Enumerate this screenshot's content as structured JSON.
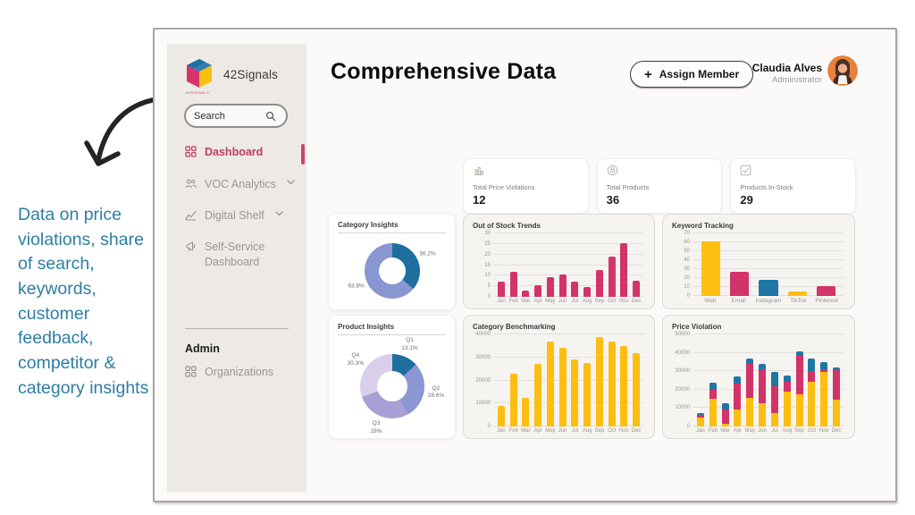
{
  "annotation": {
    "text": "Data on price violations, share of search, keywords, customer feedback, competitor & category insights"
  },
  "sidebar": {
    "brand": "42Signals",
    "brand_tag": "42SIGNALS",
    "search_placeholder": "Search",
    "items": [
      {
        "label": "Dashboard"
      },
      {
        "label": "VOC Analytics"
      },
      {
        "label": "Digital Shelf"
      },
      {
        "label": "Self-Service Dashboard"
      }
    ],
    "admin_heading": "Admin",
    "admin_items": [
      {
        "label": "Organizations"
      }
    ]
  },
  "header": {
    "title": "Comprehensive Data",
    "assign_icon": "+",
    "assign_label": "Assign Member",
    "user_name": "Claudia Alves",
    "user_role": "Administrator"
  },
  "stats": [
    {
      "label": "Total Price Violations",
      "value": "12",
      "icon": "bar-chart-icon"
    },
    {
      "label": "Total Products",
      "value": "36",
      "icon": "circle-lock-icon"
    },
    {
      "label": "Products In-Stock",
      "value": "29",
      "icon": "check-square-icon"
    }
  ],
  "chart_data": [
    {
      "type": "pie",
      "title": "Category Insights",
      "labels": [
        "36.2%",
        "63.8%"
      ],
      "values": [
        36.2,
        63.8
      ],
      "colors": [
        "#1f6f9e",
        "#8897d2"
      ],
      "donut": true
    },
    {
      "type": "bar",
      "title": "Out of Stock Trends",
      "categories": [
        "Jan",
        "Feb",
        "Mar",
        "Apr",
        "May",
        "Jun",
        "Jul",
        "Aug",
        "Sep",
        "Oct",
        "Nov",
        "Dec"
      ],
      "values": [
        7,
        12,
        3,
        5.5,
        9.5,
        10.5,
        7,
        4.5,
        12.5,
        19,
        25.5,
        7.5
      ],
      "color": "#d23368",
      "ylim": [
        0,
        30
      ],
      "yticks": [
        0,
        5,
        10,
        15,
        20,
        25,
        30
      ],
      "grid": true
    },
    {
      "type": "bar",
      "title": "Keyword Tracking",
      "categories": [
        "Web",
        "Email",
        "Instagram",
        "TikTok",
        "Pinterest"
      ],
      "values": [
        61,
        27,
        18,
        5,
        11
      ],
      "colors": [
        "#fcbe11",
        "#d23368",
        "#1f76a4",
        "#fcbe11",
        "#d23368"
      ],
      "ylim": [
        0,
        70
      ],
      "yticks": [
        0,
        10,
        20,
        30,
        40,
        50,
        60,
        70
      ],
      "grid": true
    },
    {
      "type": "pie",
      "title": "Product Insights",
      "labels": [
        "Q1\n13.1%",
        "Q2\n28.6%",
        "Q3\n28%",
        "Q4\n30.3%"
      ],
      "values": [
        13.1,
        28.6,
        28,
        30.3
      ],
      "colors": [
        "#1f6f9e",
        "#8b96d2",
        "#a99fd6",
        "#d9cfea"
      ],
      "donut": true
    },
    {
      "type": "bar",
      "title": "Category Benchmarking",
      "categories": [
        "Jan",
        "Feb",
        "Mar",
        "Apr",
        "May",
        "Jun",
        "Jul",
        "Aug",
        "Sep",
        "Oct",
        "Nov",
        "Dec"
      ],
      "values": [
        9000,
        23000,
        12500,
        27000,
        37000,
        34000,
        29000,
        27500,
        39000,
        37000,
        35000,
        32000
      ],
      "color": "#fcbe11",
      "ylim": [
        0,
        40000
      ],
      "yticks": [
        0,
        10000,
        20000,
        30000,
        40000
      ],
      "grid": true
    },
    {
      "type": "bar",
      "title": "Price Violation",
      "stacked": true,
      "categories": [
        "Jan",
        "Feb",
        "Mar",
        "Apr",
        "May",
        "Jun",
        "Jul",
        "Aug",
        "Sep",
        "Oct",
        "Nov",
        "Dec"
      ],
      "series": [
        {
          "color": "#fcbe11",
          "values": [
            5000,
            15000,
            1500,
            9000,
            15500,
            12500,
            7500,
            19000,
            17500,
            24500,
            29500,
            14500
          ]
        },
        {
          "color": "#d23368",
          "values": [
            1500,
            5000,
            7500,
            14500,
            18500,
            18500,
            14500,
            5500,
            21000,
            5500,
            1500,
            16000
          ]
        },
        {
          "color": "#1f76a4",
          "values": [
            1000,
            4000,
            3500,
            3500,
            3000,
            3000,
            7500,
            3000,
            2500,
            7000,
            4000,
            1500
          ]
        }
      ],
      "ylim": [
        0,
        50000
      ],
      "yticks": [
        0,
        10000,
        20000,
        30000,
        40000,
        50000
      ],
      "grid": true
    }
  ]
}
